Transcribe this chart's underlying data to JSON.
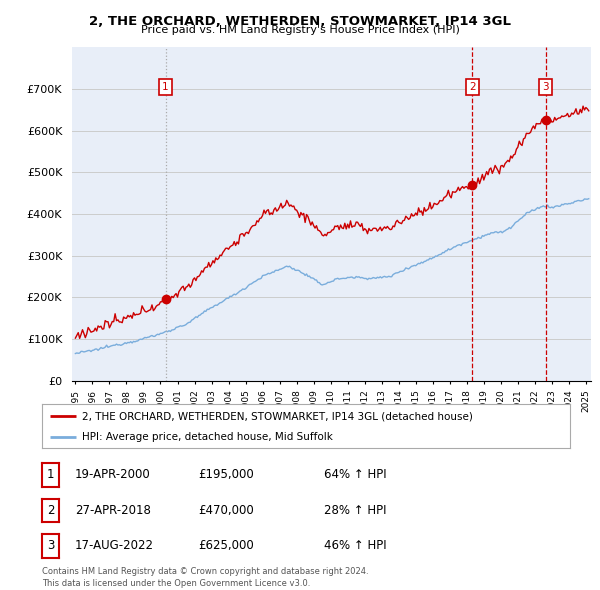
{
  "title": "2, THE ORCHARD, WETHERDEN, STOWMARKET, IP14 3GL",
  "subtitle": "Price paid vs. HM Land Registry's House Price Index (HPI)",
  "ylim": [
    0,
    800000
  ],
  "yticks": [
    0,
    100000,
    200000,
    300000,
    400000,
    500000,
    600000,
    700000
  ],
  "ytick_labels": [
    "£0",
    "£100K",
    "£200K",
    "£300K",
    "£400K",
    "£500K",
    "£600K",
    "£700K"
  ],
  "sale_dates": [
    2000.3,
    2018.32,
    2022.63
  ],
  "sale_prices": [
    195000,
    470000,
    625000
  ],
  "sale_labels": [
    "1",
    "2",
    "3"
  ],
  "legend_label_red": "2, THE ORCHARD, WETHERDEN, STOWMARKET, IP14 3GL (detached house)",
  "legend_label_blue": "HPI: Average price, detached house, Mid Suffolk",
  "table_entries": [
    {
      "num": "1",
      "date": "19-APR-2000",
      "price": "£195,000",
      "hpi": "64% ↑ HPI"
    },
    {
      "num": "2",
      "date": "27-APR-2018",
      "price": "£470,000",
      "hpi": "28% ↑ HPI"
    },
    {
      "num": "3",
      "date": "17-AUG-2022",
      "price": "£625,000",
      "hpi": "46% ↑ HPI"
    }
  ],
  "footnote": "Contains HM Land Registry data © Crown copyright and database right 2024.\nThis data is licensed under the Open Government Licence v3.0.",
  "line_color_red": "#cc0000",
  "line_color_blue": "#7aaddc",
  "vline_color_1": "#aaaaaa",
  "vline_color_23": "#cc0000",
  "grid_color": "#cccccc",
  "bg_color": "#ffffff",
  "plot_bg_color": "#e8eef8"
}
